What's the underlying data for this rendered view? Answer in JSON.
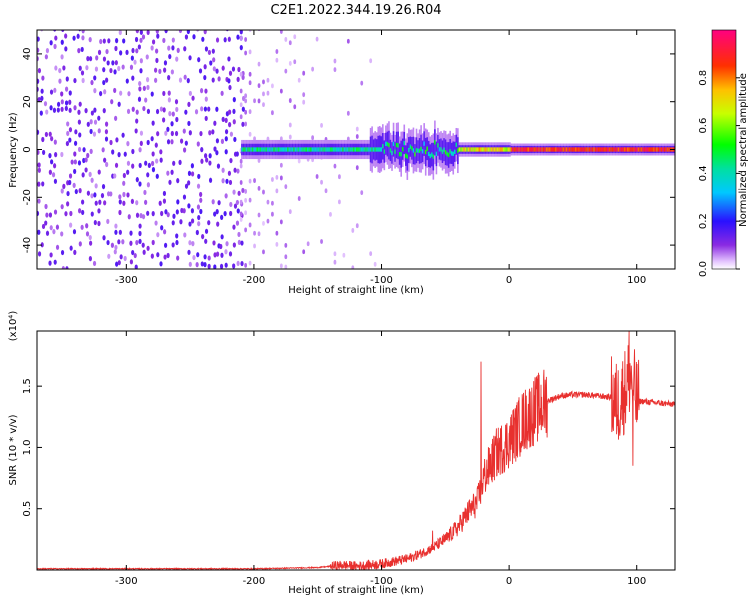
{
  "title": "C2E1.2022.344.19.26.R04",
  "chart_data": [
    {
      "type": "heatmap",
      "xlabel": "Height of straight line (km)",
      "ylabel": "Frequency (Hz)",
      "xlim": [
        -370,
        130
      ],
      "ylim": [
        -50,
        50
      ],
      "xticks": [
        -300,
        -200,
        -100,
        0,
        100
      ],
      "yticks": [
        -40,
        -20,
        0,
        20,
        40
      ],
      "colorbar": {
        "label": "Normalized spectral amplitude",
        "range": [
          0.0,
          1.0
        ],
        "ticks": [
          "0.0",
          "0.2",
          "0.4",
          "0.6",
          "0.8"
        ],
        "colormap": "hsv (purple-blue-cyan-green-yellow-orange-red-magenta)"
      },
      "features": [
        {
          "description": "broadband noise",
          "x_range": [
            -370,
            -210
          ],
          "freq_range": [
            -50,
            50
          ],
          "amplitude": 0.1
        },
        {
          "description": "fading sparse noise",
          "x_range": [
            -210,
            -100
          ],
          "freq_range": [
            -50,
            50
          ],
          "amplitude": 0.05
        },
        {
          "description": "signal band",
          "x_range": [
            -210,
            130
          ],
          "freq_center": 0,
          "amplitude_peak": 0.95
        }
      ]
    },
    {
      "type": "line",
      "xlabel": "Height of straight line (km)",
      "ylabel": "SNR (10 * v/v)",
      "yscale_label": "(x10⁴)",
      "xlim": [
        -370,
        130
      ],
      "ylim": [
        0,
        1.95
      ],
      "xticks": [
        -300,
        -200,
        -100,
        0,
        100
      ],
      "yticks": [
        "0.5",
        "1.0",
        "1.5"
      ],
      "series": [
        {
          "color": "#e8302e",
          "x": [
            -370,
            -300,
            -250,
            -200,
            -150,
            -130,
            -120,
            -100,
            -90,
            -80,
            -70,
            -60,
            -50,
            -40,
            -30,
            -25,
            -20,
            -10,
            0,
            10,
            20,
            30,
            40,
            50,
            60,
            70,
            80,
            85,
            90,
            95,
            100,
            110,
            120,
            130
          ],
          "y": [
            0.01,
            0.01,
            0.01,
            0.01,
            0.02,
            0.04,
            0.03,
            0.05,
            0.07,
            0.09,
            0.13,
            0.18,
            0.25,
            0.35,
            0.5,
            0.55,
            0.75,
            0.95,
            1.05,
            1.2,
            1.3,
            1.38,
            1.42,
            1.43,
            1.43,
            1.42,
            1.41,
            1.35,
            1.45,
            1.6,
            1.38,
            1.37,
            1.36,
            1.35
          ]
        }
      ],
      "peaks": [
        {
          "x": -22,
          "y": 1.7
        },
        {
          "x": 94,
          "y": 1.95
        },
        {
          "x": 97,
          "y": 0.85
        }
      ]
    }
  ]
}
